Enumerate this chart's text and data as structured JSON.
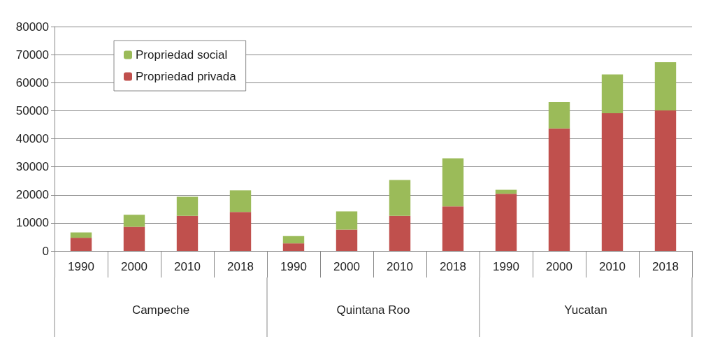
{
  "chart_data": {
    "type": "bar",
    "stacked": true,
    "categories": [
      "1990",
      "2000",
      "2010",
      "2018",
      "1990",
      "2000",
      "2010",
      "2018",
      "1990",
      "2000",
      "2010",
      "2018"
    ],
    "series": [
      {
        "name": "Propriedad privada",
        "color": "#c0504d",
        "values": [
          4700,
          8600,
          12500,
          13900,
          2700,
          7600,
          12500,
          15900,
          20400,
          43700,
          49100,
          50100
        ]
      },
      {
        "name": "Propriedad social",
        "color": "#9bbb59",
        "values": [
          1900,
          4300,
          6800,
          7700,
          2600,
          6500,
          12800,
          17100,
          1400,
          9400,
          13800,
          17200
        ]
      }
    ],
    "annotations": [
      "Campeche",
      "Quintana Roo",
      "Yucatan"
    ],
    "ylim": [
      0,
      80000
    ],
    "yticks": [
      0,
      10000,
      20000,
      30000,
      40000,
      50000,
      60000,
      70000,
      80000
    ],
    "grid": "y",
    "legend": "top left"
  }
}
